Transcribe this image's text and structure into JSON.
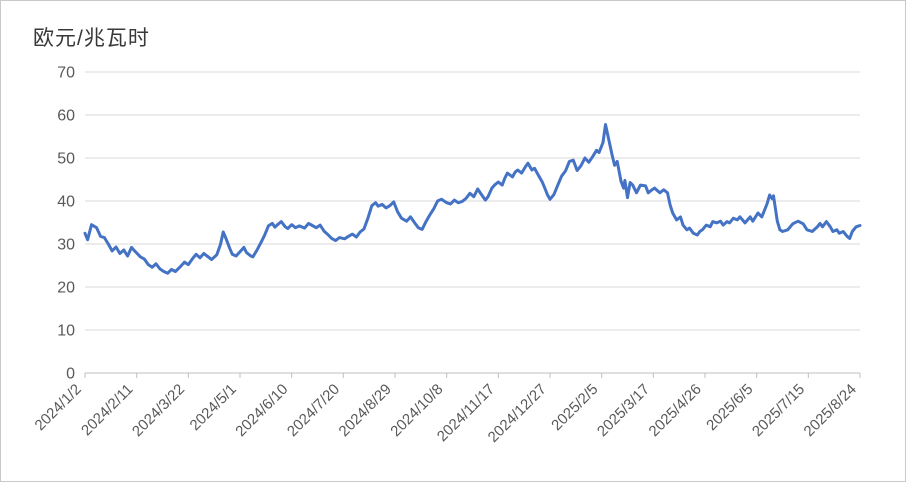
{
  "page": {
    "background": "#ffffff",
    "frame_border": "#c9c9c9"
  },
  "chart": {
    "title": "欧元/兆瓦时"
  },
  "chart_data": {
    "type": "line",
    "title": "欧元/兆瓦时",
    "xlabel": "",
    "ylabel": "欧元/兆瓦时",
    "legend": "none",
    "grid": "horizontal",
    "line_color": "#4472C4",
    "line_width": 3,
    "gridline_color": "#D9D9D9",
    "axis_color": "#BFBFBF",
    "label_color": "#595959",
    "ylim": [
      0,
      70
    ],
    "yticks": [
      0,
      10,
      20,
      30,
      40,
      50,
      60,
      70
    ],
    "x_tick_labels": [
      "2024/1/2",
      "2024/2/11",
      "2024/3/22",
      "2024/5/1",
      "2024/6/10",
      "2024/7/20",
      "2024/8/29",
      "2024/10/8",
      "2024/11/17",
      "2024/12/27",
      "2025/2/5",
      "2025/3/17",
      "2025/4/26",
      "2025/6/5",
      "2025/7/15",
      "2025/8/24"
    ],
    "x_unit": "days_since_first_label",
    "x_day_range": [
      0,
      600
    ],
    "points": [
      [
        0,
        32.5
      ],
      [
        2,
        31
      ],
      [
        5,
        34.5
      ],
      [
        9,
        33.8
      ],
      [
        12,
        31.8
      ],
      [
        15,
        31.5
      ],
      [
        18,
        30
      ],
      [
        21,
        28.4
      ],
      [
        24,
        29.3
      ],
      [
        27,
        27.8
      ],
      [
        30,
        28.6
      ],
      [
        33,
        27.2
      ],
      [
        36,
        29.2
      ],
      [
        39,
        28.2
      ],
      [
        43,
        27
      ],
      [
        46,
        26.5
      ],
      [
        49,
        25.2
      ],
      [
        52,
        24.6
      ],
      [
        55,
        25.4
      ],
      [
        58,
        24.2
      ],
      [
        61,
        23.6
      ],
      [
        64,
        23.2
      ],
      [
        67,
        24.1
      ],
      [
        70,
        23.6
      ],
      [
        74,
        24.8
      ],
      [
        77,
        25.8
      ],
      [
        80,
        25.2
      ],
      [
        83,
        26.5
      ],
      [
        86,
        27.6
      ],
      [
        89,
        26.8
      ],
      [
        92,
        27.8
      ],
      [
        95,
        27.1
      ],
      [
        98,
        26.4
      ],
      [
        102,
        27.5
      ],
      [
        105,
        30
      ],
      [
        107,
        32.8
      ],
      [
        109,
        31.4
      ],
      [
        112,
        29
      ],
      [
        114,
        27.6
      ],
      [
        117,
        27.2
      ],
      [
        120,
        28.2
      ],
      [
        123,
        29.2
      ],
      [
        125,
        28
      ],
      [
        128,
        27.3
      ],
      [
        130,
        27
      ],
      [
        133,
        28.5
      ],
      [
        136,
        30.2
      ],
      [
        139,
        32
      ],
      [
        142,
        34.2
      ],
      [
        145,
        34.8
      ],
      [
        147,
        33.9
      ],
      [
        149,
        34.5
      ],
      [
        152,
        35.2
      ],
      [
        155,
        34
      ],
      [
        157,
        33.6
      ],
      [
        160,
        34.5
      ],
      [
        163,
        33.8
      ],
      [
        166,
        34.2
      ],
      [
        170,
        33.7
      ],
      [
        173,
        34.8
      ],
      [
        176,
        34.3
      ],
      [
        179,
        33.8
      ],
      [
        182,
        34.4
      ],
      [
        185,
        33
      ],
      [
        188,
        32.2
      ],
      [
        191,
        31.3
      ],
      [
        194,
        30.8
      ],
      [
        197,
        31.5
      ],
      [
        201,
        31.2
      ],
      [
        204,
        31.8
      ],
      [
        207,
        32.3
      ],
      [
        210,
        31.6
      ],
      [
        213,
        32.8
      ],
      [
        216,
        33.5
      ],
      [
        219,
        36
      ],
      [
        222,
        38.9
      ],
      [
        225,
        39.6
      ],
      [
        227,
        38.8
      ],
      [
        230,
        39.2
      ],
      [
        233,
        38.4
      ],
      [
        236,
        38.9
      ],
      [
        239,
        39.8
      ],
      [
        242,
        37.5
      ],
      [
        245,
        36
      ],
      [
        249,
        35.3
      ],
      [
        252,
        36.3
      ],
      [
        255,
        35
      ],
      [
        258,
        33.8
      ],
      [
        261,
        33.4
      ],
      [
        264,
        35.2
      ],
      [
        267,
        36.8
      ],
      [
        270,
        38.2
      ],
      [
        273,
        40
      ],
      [
        276,
        40.4
      ],
      [
        280,
        39.6
      ],
      [
        283,
        39.3
      ],
      [
        286,
        40.2
      ],
      [
        289,
        39.6
      ],
      [
        292,
        39.9
      ],
      [
        295,
        40.6
      ],
      [
        298,
        41.8
      ],
      [
        301,
        41
      ],
      [
        304,
        42.8
      ],
      [
        307,
        41.5
      ],
      [
        310,
        40.2
      ],
      [
        312,
        41
      ],
      [
        315,
        43
      ],
      [
        317,
        43.7
      ],
      [
        320,
        44.4
      ],
      [
        323,
        43.7
      ],
      [
        325,
        45.3
      ],
      [
        327,
        46.5
      ],
      [
        331,
        45.6
      ],
      [
        333,
        46.7
      ],
      [
        335,
        47.2
      ],
      [
        338,
        46.5
      ],
      [
        341,
        48
      ],
      [
        343,
        48.8
      ],
      [
        346,
        47.2
      ],
      [
        348,
        47.6
      ],
      [
        351,
        46
      ],
      [
        354,
        44.4
      ],
      [
        356,
        43
      ],
      [
        358,
        41.5
      ],
      [
        360,
        40.4
      ],
      [
        363,
        41.5
      ],
      [
        366,
        43.7
      ],
      [
        369,
        45.8
      ],
      [
        372,
        47
      ],
      [
        375,
        49.2
      ],
      [
        378,
        49.5
      ],
      [
        381,
        47.1
      ],
      [
        384,
        48.2
      ],
      [
        387,
        50
      ],
      [
        390,
        49
      ],
      [
        393,
        50.3
      ],
      [
        396,
        51.8
      ],
      [
        398,
        51.3
      ],
      [
        401,
        53.6
      ],
      [
        403,
        57.8
      ],
      [
        405,
        55
      ],
      [
        408,
        50.8
      ],
      [
        410,
        48.3
      ],
      [
        412,
        49.2
      ],
      [
        415,
        44.6
      ],
      [
        417,
        43
      ],
      [
        418,
        44.8
      ],
      [
        420,
        40.8
      ],
      [
        422,
        44.3
      ],
      [
        424,
        43.7
      ],
      [
        427,
        41.9
      ],
      [
        430,
        43.7
      ],
      [
        434,
        43.5
      ],
      [
        436,
        41.9
      ],
      [
        439,
        42.6
      ],
      [
        441,
        43
      ],
      [
        445,
        41.9
      ],
      [
        448,
        42.6
      ],
      [
        451,
        41.9
      ],
      [
        453,
        39.1
      ],
      [
        455,
        37.2
      ],
      [
        458,
        35.6
      ],
      [
        461,
        36.3
      ],
      [
        463,
        34.4
      ],
      [
        466,
        33.3
      ],
      [
        468,
        33.7
      ],
      [
        471,
        32.5
      ],
      [
        474,
        32.1
      ],
      [
        476,
        32.9
      ],
      [
        478,
        33.3
      ],
      [
        481,
        34.4
      ],
      [
        484,
        34
      ],
      [
        486,
        35.2
      ],
      [
        489,
        34.9
      ],
      [
        492,
        35.3
      ],
      [
        494,
        34.4
      ],
      [
        497,
        35.2
      ],
      [
        499,
        34.9
      ],
      [
        502,
        36
      ],
      [
        505,
        35.6
      ],
      [
        507,
        36.3
      ],
      [
        511,
        34.9
      ],
      [
        515,
        36.3
      ],
      [
        517,
        35.3
      ],
      [
        521,
        37.2
      ],
      [
        524,
        36.3
      ],
      [
        528,
        39.3
      ],
      [
        530,
        41.4
      ],
      [
        532,
        40.5
      ],
      [
        533,
        41.2
      ],
      [
        536,
        35.3
      ],
      [
        538,
        33.3
      ],
      [
        540,
        32.9
      ],
      [
        544,
        33.3
      ],
      [
        548,
        34.7
      ],
      [
        552,
        35.3
      ],
      [
        556,
        34.7
      ],
      [
        559,
        33.3
      ],
      [
        563,
        32.9
      ],
      [
        567,
        34
      ],
      [
        569,
        34.8
      ],
      [
        571,
        34
      ],
      [
        574,
        35.2
      ],
      [
        577,
        34
      ],
      [
        579,
        32.9
      ],
      [
        582,
        33.3
      ],
      [
        584,
        32.5
      ],
      [
        587,
        32.9
      ],
      [
        590,
        31.8
      ],
      [
        592,
        31.3
      ],
      [
        594,
        32.9
      ],
      [
        597,
        34
      ],
      [
        600,
        34.3
      ]
    ]
  }
}
